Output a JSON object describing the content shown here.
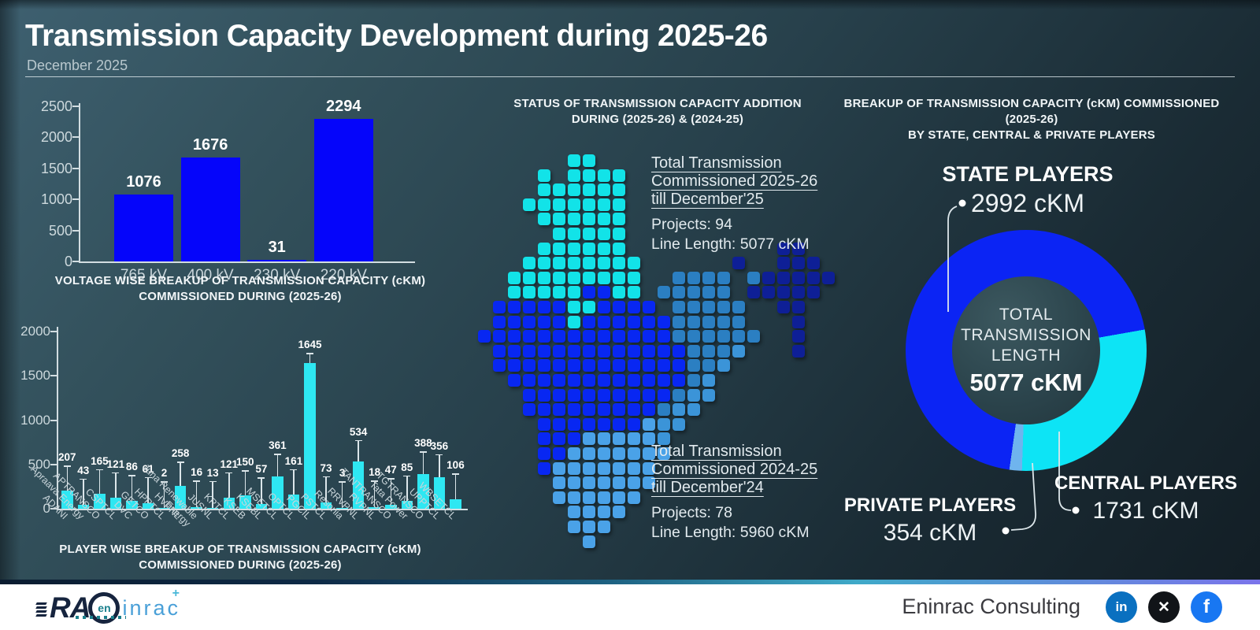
{
  "header": {
    "title": "Transmission Capacity Development during 2025-26",
    "subtitle": "December 2025"
  },
  "chart_data": [
    {
      "type": "bar",
      "name": "voltage-wise-breakup",
      "title_lines": [
        "VOLTAGE WISE BREAKUP OF TRANSMISSION CAPACITY (cKM)",
        "COMMISSIONED DURING (2025-26)"
      ],
      "categories": [
        "765 kV",
        "400 kV",
        "230 kV",
        "220 kV"
      ],
      "values": [
        1076,
        1676,
        31,
        2294
      ],
      "ylim": [
        0,
        2500
      ],
      "yticks": [
        0,
        500,
        1000,
        1500,
        2000,
        2500
      ],
      "bar_color": "#0505fa",
      "grid": false,
      "legend": "none"
    },
    {
      "type": "bar",
      "name": "player-wise-breakup",
      "title_lines": [
        "PLAYER WISE BREAKUP OF TRANSMISSION CAPACITY (cKM)",
        "COMMISSIONED DURING (2025-26)"
      ],
      "categories": [
        "ADANI",
        "Apraava Energy",
        "APTRANSCO",
        "CSPTCL",
        "DVC",
        "GETCO",
        "HPPTCL",
        "HVPNL",
        "Juna Renewable Energy",
        "JUSNL",
        "KPTCL",
        "KSEB",
        "KSEBL",
        "MSETCL",
        "OPTCL",
        "PGCIL",
        "PSTCL",
        "Resonia",
        "RRVPNL",
        "RVPNL",
        "TANTRANSCO",
        "Tata Power",
        "TGTRANSCO",
        "UPPTCL",
        "WBSETCL"
      ],
      "values": [
        207,
        43,
        165,
        121,
        86,
        61,
        2,
        258,
        16,
        13,
        121,
        150,
        57,
        361,
        161,
        1645,
        73,
        3,
        534,
        18,
        47,
        85,
        388,
        356,
        106
      ],
      "ylim": [
        0,
        2000
      ],
      "yticks": [
        0,
        500,
        1000,
        1500,
        2000
      ],
      "bar_color": "#2ee7f2",
      "error_bars": true,
      "grid": false,
      "legend": "none"
    },
    {
      "type": "pie",
      "name": "players-donut",
      "title_lines": [
        "BREAKUP OF TRANSMISSION CAPACITY (cKM) COMMISSIONED (2025-26)",
        "BY STATE, CENTRAL & PRIVATE PLAYERS"
      ],
      "segments": [
        {
          "label": "STATE PLAYERS",
          "value": 2992,
          "display": "2992 cKM",
          "color": "#0b24f4"
        },
        {
          "label": "CENTRAL PLAYERS",
          "value": 1731,
          "display": "1731 cKM",
          "color": "#0de4f5"
        },
        {
          "label": "PRIVATE PLAYERS",
          "value": 354,
          "display": "354 cKM",
          "color": "#6fb4ee"
        }
      ],
      "visual_angles": [
        80,
        182,
        188
      ],
      "center_label_lines": [
        "TOTAL",
        "TRANSMISSION",
        "LENGTH"
      ],
      "center_value": "5077 cKM"
    },
    {
      "type": "map-grid",
      "name": "india-dot-map",
      "palette": {
        "c": "#12e3e8",
        "b": "#0827f2",
        "s": "#2b7fc2",
        "m": "#3b94d8",
        "l": "#4aa2e8",
        "d": "#0e1f96"
      },
      "rows": [
        "......cc................",
        "....c.cccc..............",
        "....cccccc..............",
        "...ccccccc..............",
        "....cccccc..............",
        ".....ccccc..............",
        "....cccccc..........dd..",
        "...cccccccc......d..ddd.",
        "..ccccccccc..ssss.sddddd",
        "..cccccbbcc.sssss.ddddd.",
        ".bbbbbccbbbb.sssss..dd..",
        ".bbbbbcbbbbbbsssss...d..",
        "bbbbbbbbbbbbbssssss..d..",
        ".bbbbbbbbbbbbbsssm...d..",
        ".bbbbbbbbbbbbbssm.......",
        "..bbbbbbbbbbbbsm........",
        "...bbbbbbbbbbsmm........",
        "...bbbbbbbbbsmm.........",
        "....bbbbbbblmm..........",
        "....bbblllllm...........",
        "....bblllllll...........",
        "....blllllll............",
        ".....lllllll............",
        ".....llllll.............",
        "......llll..............",
        "......lll...............",
        ".......l................"
      ]
    }
  ],
  "middle": {
    "title_lines": [
      "STATUS OF TRANSMISSION CAPACITY ADDITION",
      "DURING (2025-26) & (2024-25)"
    ],
    "annotations": [
      {
        "underlined_lines": [
          "Total Transmission",
          "Commissioned 2025-26",
          "till December'25"
        ],
        "stats": [
          "Projects: 94",
          "Line Length: 5077 cKM"
        ]
      },
      {
        "underlined_lines": [
          "Total Transmission",
          "Commissioned 2024-25",
          "till December'24"
        ],
        "stats": [
          "Projects: 78",
          "Line Length: 5960 cKM"
        ]
      }
    ]
  },
  "footer": {
    "brand_text": "Eninrac Consulting",
    "logo": {
      "ra": "RA",
      "circle": "en",
      "inrac": "inrac",
      "plus": "+"
    },
    "social": [
      {
        "name": "linkedin",
        "label": "in",
        "color": "#0a70c0"
      },
      {
        "name": "x",
        "label": "✕",
        "color": "#111418"
      },
      {
        "name": "facebook",
        "label": "f",
        "color": "#1877f2"
      }
    ]
  }
}
